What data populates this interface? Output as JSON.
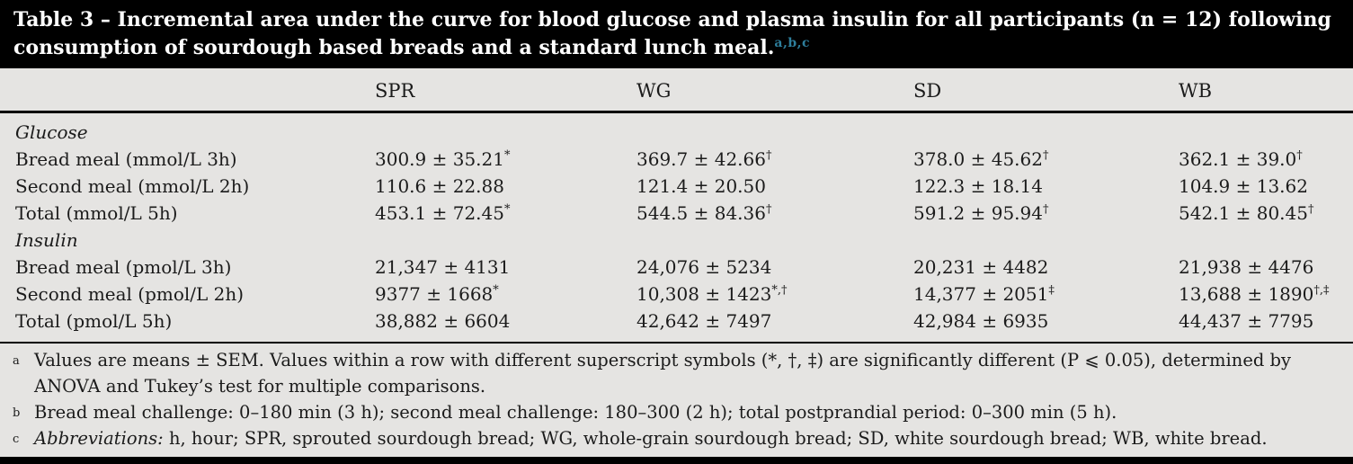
{
  "colors": {
    "caption_bar": "#000000",
    "page_background": "#e5e4e2",
    "text": "#1b1b1b",
    "superscript_accent": "#2e7f9d"
  },
  "title": {
    "text": "Table 3 – Incremental area under the curve for blood glucose and plasma insulin for all participants (n = 12) following consumption of sourdough based breads and a standard lunch meal.",
    "superscripts": "a,b,c"
  },
  "table": {
    "columns": [
      "SPR",
      "WG",
      "SD",
      "WB"
    ],
    "rows": [
      {
        "type": "section",
        "label": "Glucose"
      },
      {
        "type": "data",
        "label": "Bread meal (mmol/L 3h)",
        "cells": [
          {
            "value": "300.9 ± 35.21",
            "sup": "*"
          },
          {
            "value": "369.7 ± 42.66",
            "sup": "†"
          },
          {
            "value": "378.0 ± 45.62",
            "sup": "†"
          },
          {
            "value": "362.1 ± 39.0",
            "sup": "†"
          }
        ]
      },
      {
        "type": "data",
        "label": "Second meal (mmol/L 2h)",
        "cells": [
          {
            "value": "110.6 ± 22.88",
            "sup": ""
          },
          {
            "value": "121.4 ± 20.50",
            "sup": ""
          },
          {
            "value": "122.3 ± 18.14",
            "sup": ""
          },
          {
            "value": "104.9 ± 13.62",
            "sup": ""
          }
        ]
      },
      {
        "type": "data",
        "label": "Total (mmol/L 5h)",
        "cells": [
          {
            "value": "453.1 ± 72.45",
            "sup": "*"
          },
          {
            "value": "544.5 ± 84.36",
            "sup": "†"
          },
          {
            "value": "591.2 ± 95.94",
            "sup": "†"
          },
          {
            "value": "542.1 ± 80.45",
            "sup": "†"
          }
        ]
      },
      {
        "type": "section",
        "label": "Insulin"
      },
      {
        "type": "data",
        "label": "Bread meal (pmol/L 3h)",
        "cells": [
          {
            "value": "21,347 ± 4131",
            "sup": ""
          },
          {
            "value": "24,076 ± 5234",
            "sup": ""
          },
          {
            "value": "20,231 ± 4482",
            "sup": ""
          },
          {
            "value": "21,938 ± 4476",
            "sup": ""
          }
        ]
      },
      {
        "type": "data",
        "label": "Second meal (pmol/L 2h)",
        "cells": [
          {
            "value": "9377 ± 1668",
            "sup": "*"
          },
          {
            "value": "10,308 ± 1423",
            "sup": "*,†"
          },
          {
            "value": "14,377 ± 2051",
            "sup": "‡"
          },
          {
            "value": "13,688 ± 1890",
            "sup": "†,‡"
          }
        ]
      },
      {
        "type": "data",
        "label": "Total (pmol/L 5h)",
        "cells": [
          {
            "value": "38,882 ± 6604",
            "sup": ""
          },
          {
            "value": "42,642 ± 7497",
            "sup": ""
          },
          {
            "value": "42,984 ± 6935",
            "sup": ""
          },
          {
            "value": "44,437 ± 7795",
            "sup": ""
          }
        ]
      }
    ]
  },
  "footnotes": [
    {
      "marker": "a",
      "italic_lead": "",
      "text": "Values are means ± SEM. Values within a row with different superscript symbols (*, †, ‡) are significantly different (P ⩽ 0.05), determined by ANOVA and Tukey’s test for multiple comparisons."
    },
    {
      "marker": "b",
      "italic_lead": "",
      "text": "Bread meal challenge: 0–180 min (3 h); second meal challenge: 180–300 (2 h); total postprandial period: 0–300 min (5 h)."
    },
    {
      "marker": "c",
      "italic_lead": "Abbreviations:",
      "text": " h, hour; SPR, sprouted sourdough bread; WG, whole-grain sourdough bread; SD, white sourdough bread; WB, white bread."
    }
  ]
}
